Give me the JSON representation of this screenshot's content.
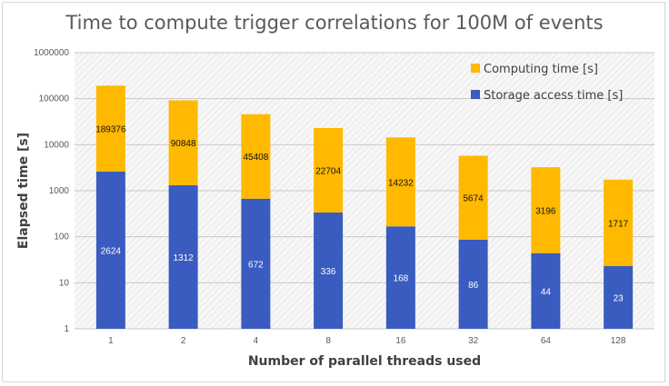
{
  "chart_data": {
    "type": "bar",
    "stacked": true,
    "title": "Time to compute trigger correlations for 100M of events",
    "xlabel": "Number of parallel threads used",
    "ylabel": "Elapsed time [s]",
    "yscale": "log",
    "ylim": [
      1,
      1000000
    ],
    "yticks": [
      "1",
      "10",
      "100",
      "1000",
      "10000",
      "100000",
      "1000000"
    ],
    "categories": [
      "1",
      "2",
      "4",
      "8",
      "16",
      "32",
      "64",
      "128"
    ],
    "series": [
      {
        "name": "Storage access time [s]",
        "color": "#3a5bbf",
        "values": [
          2624,
          1312,
          672,
          336,
          168,
          86,
          44,
          23
        ],
        "labels": [
          "2624",
          "1312",
          "672",
          "336",
          "168",
          "86",
          "44",
          "23"
        ]
      },
      {
        "name": "Computing time [s]",
        "color": "#ffb900",
        "values": [
          189376,
          90848,
          45408,
          22704,
          14232,
          5674,
          3196,
          1717
        ],
        "labels": [
          "189376",
          "90848",
          "45408",
          "22704",
          "14232",
          "5674",
          "3196",
          "1717"
        ]
      }
    ],
    "grid": true,
    "legend": "top-right"
  }
}
